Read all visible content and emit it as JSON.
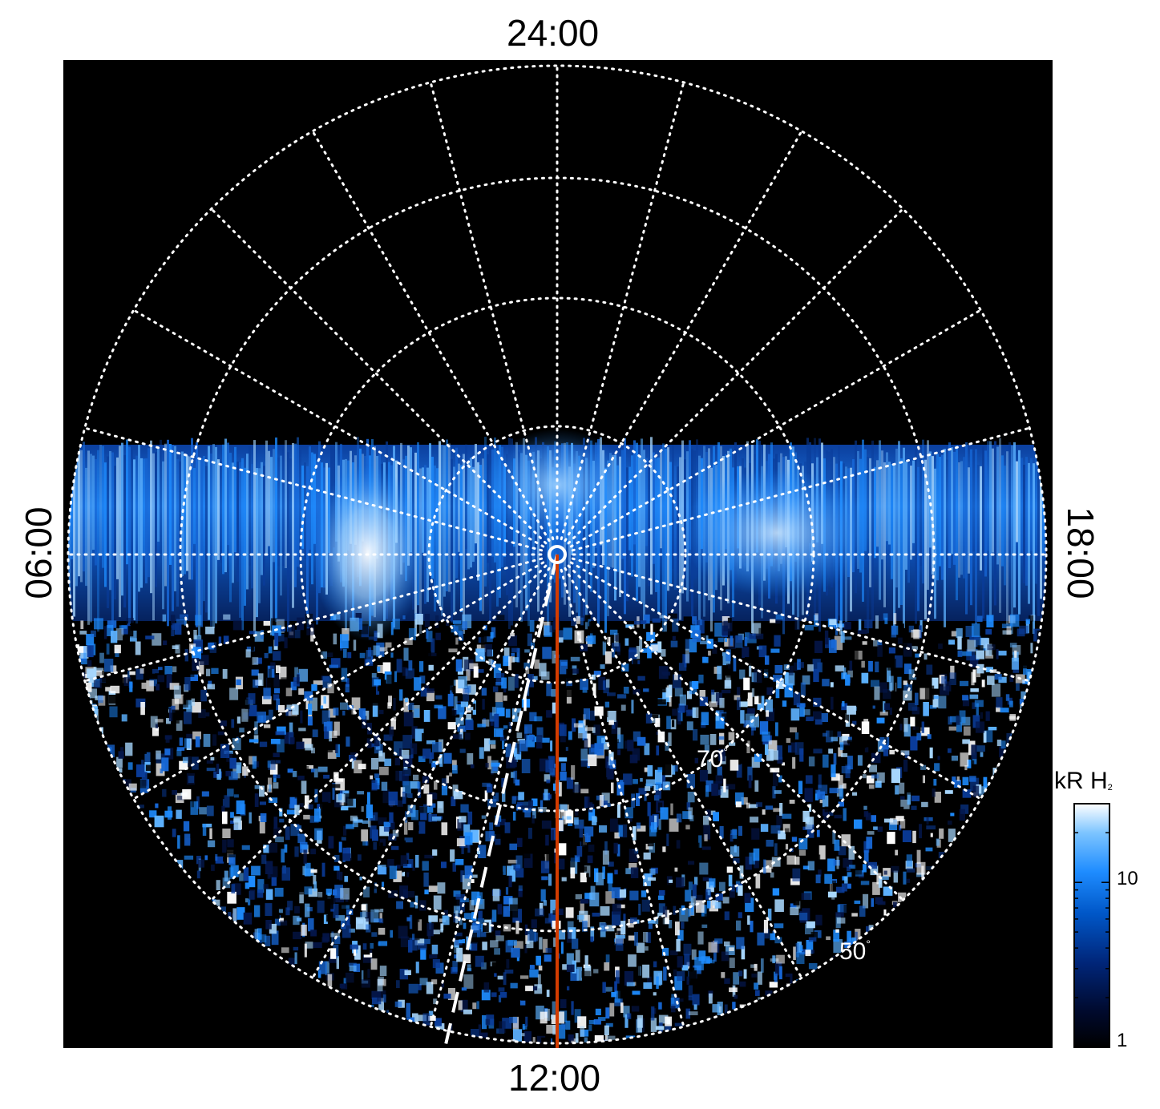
{
  "local_time_labels": {
    "top": "24:00",
    "bottom": "12:00",
    "left": "06:00",
    "right": "18:00"
  },
  "latitude_labels": {
    "inner": "70",
    "outer": "50",
    "degree_symbol": "°"
  },
  "colorbar": {
    "title": "kR H",
    "title_subscript": "2",
    "scale": "log",
    "range": [
      1,
      30
    ],
    "ticks": [
      "10",
      "1"
    ],
    "colors": [
      "#000000",
      "#000a2e",
      "#00267a",
      "#0057c8",
      "#1e8cff",
      "#7cc4ff",
      "#ffffff"
    ]
  },
  "colors": {
    "background": "#000000",
    "grid": "#ffffff",
    "meridian_line": "#d23c00",
    "dashed_line": "#ffffff"
  }
}
